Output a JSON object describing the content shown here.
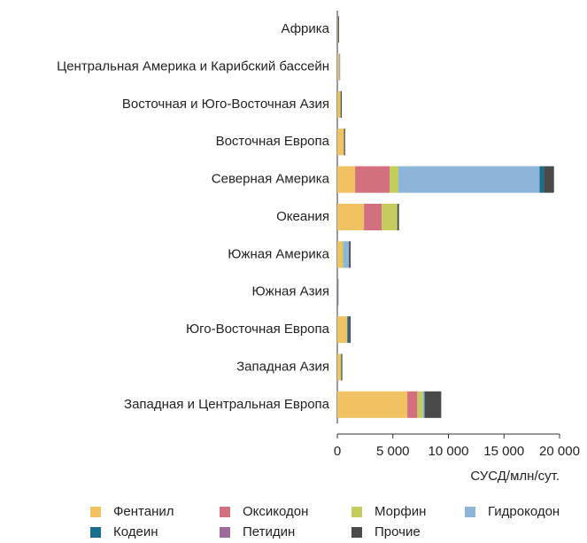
{
  "chart_data": {
    "type": "stacked-bar-horizontal",
    "categories": [
      "Африка",
      "Центральная Америка и Карибский бассейн",
      "Восточная и Юго-Восточная Азия",
      "Восточная Европа",
      "Северная Америка",
      "Океания",
      "Южная Америка",
      "Южная Азия",
      "Юго-Восточная Европа",
      "Западная Азия",
      "Западная и Центральная Европа"
    ],
    "series": [
      {
        "name": "Фентанил",
        "color": "#f0c262",
        "values": [
          50,
          100,
          200,
          600,
          1600,
          2400,
          400,
          0,
          900,
          250,
          6300
        ]
      },
      {
        "name": "Оксикодон",
        "color": "#d3707f",
        "values": [
          0,
          20,
          0,
          0,
          3100,
          1600,
          0,
          0,
          0,
          0,
          900
        ]
      },
      {
        "name": "Морфин",
        "color": "#c3cc5c",
        "values": [
          0,
          50,
          100,
          0,
          800,
          1400,
          150,
          0,
          0,
          100,
          500
        ]
      },
      {
        "name": "Гидрокодон",
        "color": "#8db4d9",
        "values": [
          0,
          30,
          0,
          0,
          12700,
          0,
          500,
          0,
          0,
          0,
          150
        ]
      },
      {
        "name": "Кодеин",
        "color": "#1a6d8e",
        "values": [
          0,
          10,
          0,
          0,
          400,
          0,
          0,
          0,
          150,
          0,
          0
        ]
      },
      {
        "name": "Петидин",
        "color": "#9e6a99",
        "values": [
          0,
          20,
          0,
          0,
          0,
          0,
          0,
          80,
          0,
          0,
          0
        ]
      },
      {
        "name": "Прочие",
        "color": "#4a4a4a",
        "values": [
          100,
          20,
          100,
          100,
          900,
          150,
          150,
          20,
          150,
          100,
          1500
        ]
      }
    ],
    "xlim": [
      0,
      20000
    ],
    "xticks": [
      0,
      {
        "value": 5000,
        "label": "5 000"
      },
      {
        "value": 10000,
        "label": "10 000"
      },
      {
        "value": 15000,
        "label": "15 000"
      },
      {
        "value": 20000,
        "label": "20 000"
      }
    ],
    "xlabel": "СУСД/млн/сут."
  }
}
